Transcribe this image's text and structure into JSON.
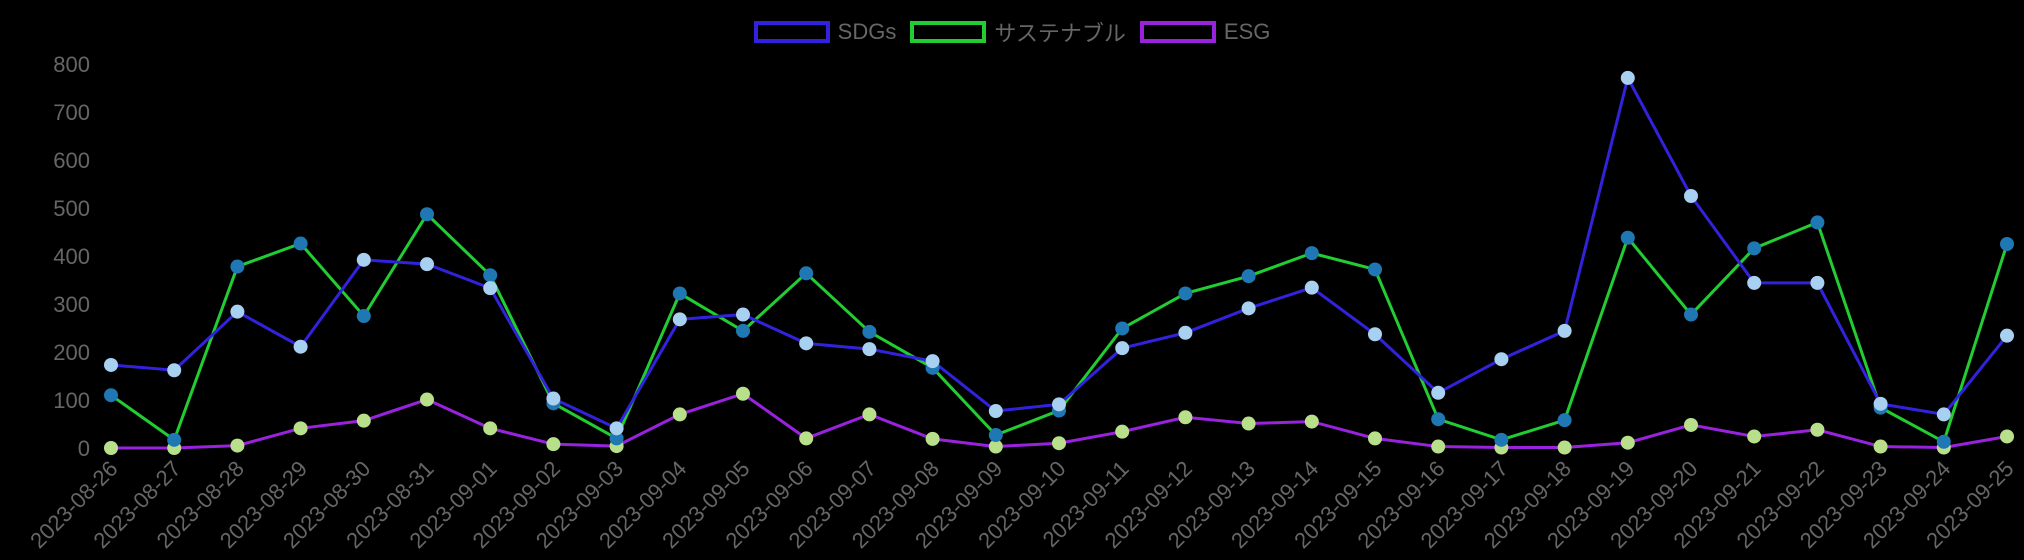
{
  "chart_data": {
    "type": "line",
    "title": "",
    "xlabel": "",
    "ylabel": "",
    "ylim": [
      0,
      800
    ],
    "yticks": [
      0,
      100,
      200,
      300,
      400,
      500,
      600,
      700,
      800
    ],
    "grid": false,
    "legend_position": "top",
    "categories": [
      "2023-08-26",
      "2023-08-27",
      "2023-08-28",
      "2023-08-29",
      "2023-08-30",
      "2023-08-31",
      "2023-09-01",
      "2023-09-02",
      "2023-09-03",
      "2023-09-04",
      "2023-09-05",
      "2023-09-06",
      "2023-09-07",
      "2023-09-08",
      "2023-09-09",
      "2023-09-10",
      "2023-09-11",
      "2023-09-12",
      "2023-09-13",
      "2023-09-14",
      "2023-09-15",
      "2023-09-16",
      "2023-09-17",
      "2023-09-18",
      "2023-09-19",
      "2023-09-20",
      "2023-09-21",
      "2023-09-22",
      "2023-09-23",
      "2023-09-24",
      "2023-09-25"
    ],
    "series": [
      {
        "name": "SDGs",
        "color": "#3322dd",
        "point_color": "#a8d0f0",
        "values": [
          173,
          162,
          284,
          211,
          392,
          383,
          333,
          103,
          41,
          268,
          278,
          218,
          206,
          181,
          77,
          91,
          208,
          240,
          291,
          334,
          237,
          115,
          185,
          244,
          771,
          525,
          344,
          344,
          92,
          70,
          234
        ]
      },
      {
        "name": "サステナブル",
        "color": "#22cc33",
        "point_color": "#1f78b4",
        "values": [
          110,
          17,
          378,
          426,
          275,
          487,
          360,
          93,
          20,
          322,
          244,
          364,
          242,
          167,
          27,
          78,
          249,
          322,
          358,
          406,
          372,
          60,
          17,
          58,
          438,
          278,
          416,
          470,
          84,
          13,
          425
        ]
      },
      {
        "name": "ESG",
        "color": "#9922dd",
        "point_color": "#b8e08a",
        "values": [
          0,
          0,
          5,
          41,
          57,
          101,
          41,
          8,
          4,
          70,
          113,
          20,
          70,
          19,
          3,
          10,
          34,
          64,
          51,
          55,
          20,
          3,
          1,
          1,
          11,
          48,
          24,
          38,
          3,
          1,
          24
        ]
      }
    ]
  },
  "legend": {
    "items": [
      {
        "label": "SDGs",
        "color": "#3322dd"
      },
      {
        "label": "サステナブル",
        "color": "#22cc33"
      },
      {
        "label": "ESG",
        "color": "#9922dd"
      }
    ]
  }
}
